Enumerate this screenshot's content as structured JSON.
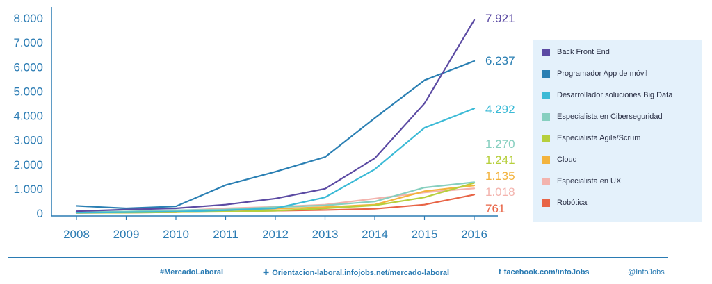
{
  "chart_data": {
    "type": "line",
    "title": "",
    "xlabel": "",
    "ylabel": "",
    "categories": [
      "2008",
      "2009",
      "2010",
      "2011",
      "2012",
      "2013",
      "2014",
      "2015",
      "2016"
    ],
    "ylim": [
      0,
      8000
    ],
    "yticks": [
      "0",
      "1.000",
      "2.000",
      "3.000",
      "4.000",
      "5.000",
      "6.000",
      "7.000",
      "8.000"
    ],
    "grid": false,
    "legend_position": "right",
    "series": [
      {
        "name": "Back Front End",
        "color": "#5b4aa3",
        "end_label": "7.921",
        "values": [
          80,
          150,
          200,
          350,
          600,
          1000,
          2250,
          4500,
          7921
        ]
      },
      {
        "name": "Programador App de móvil",
        "color": "#2a7fb3",
        "end_label": "6.237",
        "values": [
          300,
          200,
          280,
          1150,
          1700,
          2300,
          3900,
          5450,
          6237
        ]
      },
      {
        "name": "Desarrollador soluciones Big Data",
        "color": "#3bbad6",
        "end_label": "4.292",
        "values": [
          20,
          40,
          60,
          120,
          200,
          650,
          1800,
          3500,
          4292
        ]
      },
      {
        "name": "Especialista en Ciberseguridad",
        "color": "#86cfbf",
        "end_label": "1.270",
        "values": [
          40,
          70,
          120,
          150,
          250,
          320,
          480,
          1050,
          1270
        ]
      },
      {
        "name": "Especialista Agile/Scrum",
        "color": "#b6cf3c",
        "end_label": "1.241",
        "values": [
          10,
          20,
          40,
          60,
          100,
          200,
          320,
          650,
          1241
        ]
      },
      {
        "name": "Cloud",
        "color": "#f3b33d",
        "end_label": "1.135",
        "values": [
          30,
          60,
          100,
          140,
          180,
          250,
          350,
          900,
          1135
        ]
      },
      {
        "name": "Especialista en UX",
        "color": "#f3b3ad",
        "end_label": "1.018",
        "values": [
          20,
          50,
          100,
          200,
          260,
          350,
          600,
          850,
          1018
        ]
      },
      {
        "name": "Robótica",
        "color": "#e86446",
        "end_label": "761",
        "values": [
          10,
          20,
          40,
          70,
          100,
          130,
          180,
          350,
          761
        ]
      }
    ]
  },
  "footer": {
    "hashtag": "#MercadoLaboral",
    "url_glyph": "✚",
    "url": "Orientacion-laboral.infojobs.net/mercado-laboral",
    "facebook_glyph": "f",
    "facebook": "facebook.com/infoJobs",
    "twitter": "@InfoJobs"
  },
  "colors": {
    "axis": "#2a7bb3",
    "legend_bg": "#e4f1fb"
  }
}
